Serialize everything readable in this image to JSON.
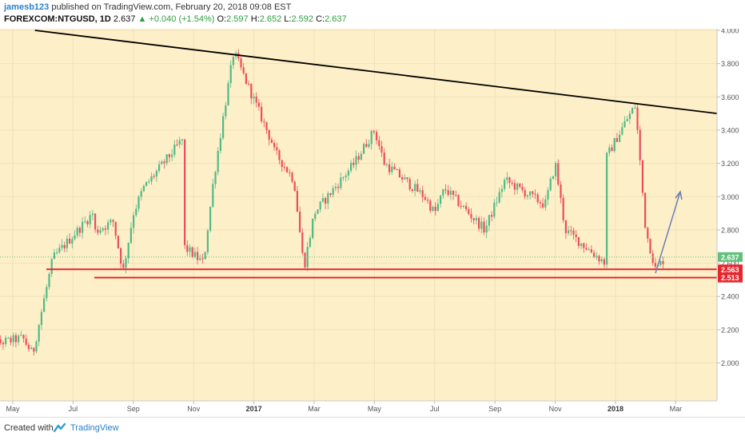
{
  "header": {
    "author": "jamesb123",
    "published_text": "published on TradingView.com, February 20, 2018 09:08 EST",
    "symbol": "FOREXCOM:NTGUSD, 1D",
    "last": "2.637",
    "change": "+0.040 (+1.54%)",
    "open_label": "O:",
    "open": "2.597",
    "high_label": "H:",
    "high": "2.652",
    "low_label": "L:",
    "low": "2.592",
    "close_label": "C:",
    "close": "2.637"
  },
  "footer": {
    "created_with": "Created with",
    "brand": "TradingView"
  },
  "colors": {
    "background": "#fdefc8",
    "up": "#53b987",
    "down": "#eb4d5c",
    "trendline": "#000000",
    "support": "#e8252d",
    "arrow": "#6a7fb5",
    "price_line": "#63c07a"
  },
  "chart_data": {
    "type": "candlestick",
    "symbol": "FOREXCOM:NTGUSD",
    "interval": "1D",
    "ylim": [
      1.82,
      4.0
    ],
    "y_ticks": [
      "4.000",
      "3.800",
      "3.600",
      "3.400",
      "3.200",
      "3.000",
      "2.800",
      "2.600",
      "2.400",
      "2.200",
      "2.000"
    ],
    "x_ticks": [
      "May",
      "Jul",
      "Sep",
      "Nov",
      "2017",
      "Mar",
      "May",
      "Jul",
      "Sep",
      "Nov",
      "2018",
      "Mar"
    ],
    "x_tick_bold": [
      "2017",
      "2018"
    ],
    "price_labels": [
      {
        "value": 2.637,
        "text": "2.637",
        "color": "#63c07a"
      },
      {
        "value": 2.563,
        "text": "2.563",
        "color": "#e8252d"
      },
      {
        "value": 2.513,
        "text": "2.513",
        "color": "#e8252d"
      }
    ],
    "support_levels": [
      2.563,
      2.513
    ],
    "trendline": {
      "from": {
        "month": "Jun 2016",
        "price": 4.0
      },
      "to": {
        "month": "Mar 2018",
        "price": 3.5
      }
    },
    "projection_arrow": {
      "from": 2.54,
      "to": 3.03
    },
    "closes": [
      {
        "m": "Apr 2016",
        "v": 2.1
      },
      {
        "m": "May 2016",
        "v": 2.15
      },
      {
        "m": "May 2016",
        "v": 2.05
      },
      {
        "m": "Jun 2016",
        "v": 2.35
      },
      {
        "m": "Jun 2016",
        "v": 2.63
      },
      {
        "m": "Jul 2016",
        "v": 2.9
      },
      {
        "m": "Jul 2016",
        "v": 2.72
      },
      {
        "m": "Aug 2016",
        "v": 2.85
      },
      {
        "m": "Aug 2016",
        "v": 2.55
      },
      {
        "m": "Sep 2016",
        "v": 2.9
      },
      {
        "m": "Sep 2016",
        "v": 3.05
      },
      {
        "m": "Oct 2016",
        "v": 3.35
      },
      {
        "m": "Oct 2016",
        "v": 2.8
      },
      {
        "m": "Nov 2016",
        "v": 2.6
      },
      {
        "m": "Nov 2016",
        "v": 3.1
      },
      {
        "m": "Dec 2016",
        "v": 3.5
      },
      {
        "m": "Dec 2016",
        "v": 3.87
      },
      {
        "m": "Jan 2017",
        "v": 3.3
      },
      {
        "m": "Jan 2017",
        "v": 3.45
      },
      {
        "m": "Feb 2017",
        "v": 3.1
      },
      {
        "m": "Feb 2017",
        "v": 2.57
      },
      {
        "m": "Mar 2017",
        "v": 2.9
      },
      {
        "m": "Apr 2017",
        "v": 3.2
      },
      {
        "m": "Apr 2017",
        "v": 3.3
      },
      {
        "m": "May 2017",
        "v": 3.4
      },
      {
        "m": "May 2017",
        "v": 3.2
      },
      {
        "m": "Jun 2017",
        "v": 3.0
      },
      {
        "m": "Jul 2017",
        "v": 2.9
      },
      {
        "m": "Jul 2017",
        "v": 3.05
      },
      {
        "m": "Aug 2017",
        "v": 2.8
      },
      {
        "m": "Sep 2017",
        "v": 2.95
      },
      {
        "m": "Sep 2017",
        "v": 3.1
      },
      {
        "m": "Oct 2017",
        "v": 2.95
      },
      {
        "m": "Nov 2017",
        "v": 3.2
      },
      {
        "m": "Nov 2017",
        "v": 2.8
      },
      {
        "m": "Dec 2017",
        "v": 2.6
      },
      {
        "m": "Dec 2017",
        "v": 3.0
      },
      {
        "m": "Jan 2018",
        "v": 3.45
      },
      {
        "m": "Jan 2018",
        "v": 3.55
      },
      {
        "m": "Feb 2018",
        "v": 2.8
      },
      {
        "m": "Feb 2018",
        "v": 2.56
      },
      {
        "m": "Feb 2018",
        "v": 2.637
      }
    ]
  }
}
